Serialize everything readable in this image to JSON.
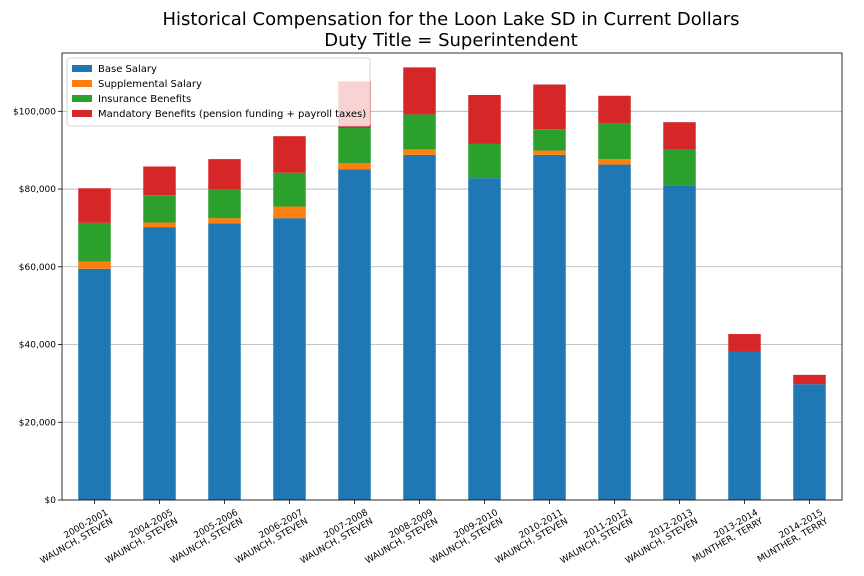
{
  "chart_data": {
    "type": "bar",
    "stacked": true,
    "title": "Historical Compensation for the Loon Lake SD in Current Dollars",
    "subtitle": "Duty Title = Superintendent",
    "xlabel": "",
    "ylabel": "",
    "ylim": [
      0,
      115000
    ],
    "yticks": [
      0,
      20000,
      40000,
      60000,
      80000,
      100000
    ],
    "ytick_labels": [
      "$0",
      "$20,000",
      "$40,000",
      "$60,000",
      "$80,000",
      "$100,000"
    ],
    "grid": "horizontal",
    "legend_position": "top-left",
    "categories": [
      [
        "2000-2001",
        "WAUNCH, STEVEN"
      ],
      [
        "2004-2005",
        "WAUNCH, STEVEN"
      ],
      [
        "2005-2006",
        "WAUNCH, STEVEN"
      ],
      [
        "2006-2007",
        "WAUNCH, STEVEN"
      ],
      [
        "2007-2008",
        "WAUNCH, STEVEN"
      ],
      [
        "2008-2009",
        "WAUNCH, STEVEN"
      ],
      [
        "2009-2010",
        "WAUNCH, STEVEN"
      ],
      [
        "2010-2011",
        "WAUNCH, STEVEN"
      ],
      [
        "2011-2012",
        "WAUNCH, STEVEN"
      ],
      [
        "2012-2013",
        "WAUNCH, STEVEN"
      ],
      [
        "2013-2014",
        "MUNTHER, TERRY"
      ],
      [
        "2014-2015",
        "MUNTHER, TERRY"
      ]
    ],
    "series": [
      {
        "name": "Base Salary",
        "color": "#1f77b4",
        "values": [
          59500,
          70200,
          71200,
          72500,
          85100,
          88800,
          82800,
          88800,
          86300,
          80800,
          38200,
          29800
        ]
      },
      {
        "name": "Supplemental Salary",
        "color": "#ff7f0e",
        "values": [
          1800,
          1200,
          1300,
          3000,
          1600,
          1400,
          0,
          1100,
          1400,
          0,
          0,
          0
        ]
      },
      {
        "name": "Insurance Benefits",
        "color": "#2ca02c",
        "values": [
          10000,
          7000,
          7500,
          8700,
          9000,
          9000,
          8800,
          5500,
          9300,
          9500,
          0,
          0
        ]
      },
      {
        "name": "Mandatory Benefits (pension funding + payroll taxes)",
        "color": "#d62728",
        "values": [
          8900,
          7400,
          7700,
          9400,
          12000,
          12100,
          12600,
          11500,
          7000,
          6900,
          4500,
          2400
        ]
      }
    ]
  }
}
